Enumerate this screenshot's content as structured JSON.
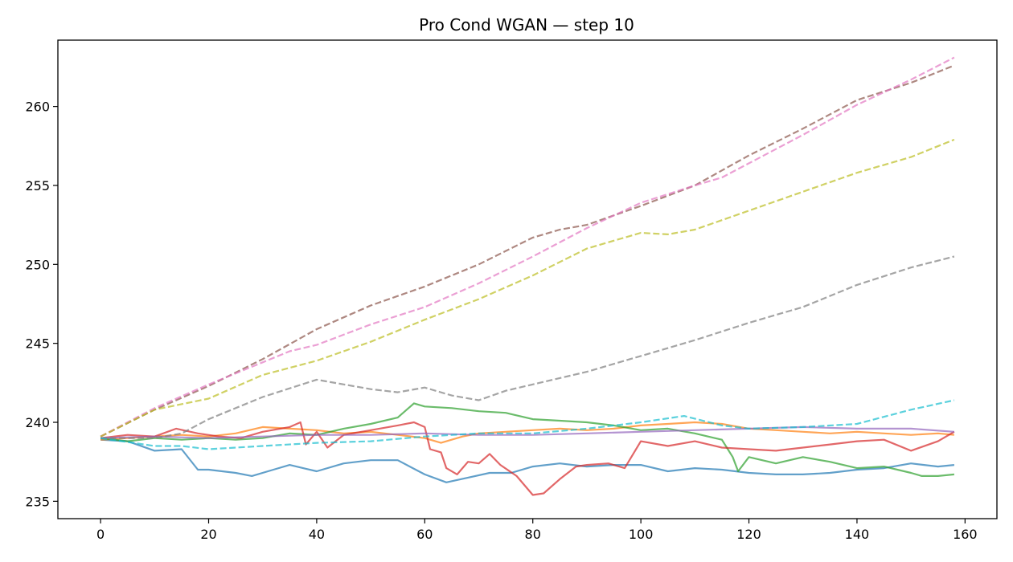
{
  "chart_data": {
    "type": "line",
    "title": "Pro Cond WGAN — step 10",
    "xlabel": "",
    "ylabel": "",
    "xlim": [
      -7.9,
      165.9
    ],
    "ylim": [
      233.9,
      264.2
    ],
    "xticks": [
      0,
      20,
      40,
      60,
      80,
      100,
      120,
      140,
      160
    ],
    "yticks": [
      235,
      240,
      245,
      250,
      255,
      260
    ],
    "grid": false,
    "legend": "none",
    "series": [
      {
        "color": "#1f77b4",
        "dash": "solid",
        "points": [
          [
            0,
            238.9
          ],
          [
            5,
            238.8
          ],
          [
            10,
            238.2
          ],
          [
            15,
            238.3
          ],
          [
            18,
            237.0
          ],
          [
            20,
            237.0
          ],
          [
            25,
            236.8
          ],
          [
            28,
            236.6
          ],
          [
            32,
            237.0
          ],
          [
            35,
            237.3
          ],
          [
            40,
            236.9
          ],
          [
            45,
            237.4
          ],
          [
            50,
            237.6
          ],
          [
            55,
            237.6
          ],
          [
            60,
            236.7
          ],
          [
            64,
            236.2
          ],
          [
            68,
            236.5
          ],
          [
            72,
            236.8
          ],
          [
            76,
            236.8
          ],
          [
            80,
            237.2
          ],
          [
            85,
            237.4
          ],
          [
            90,
            237.2
          ],
          [
            95,
            237.3
          ],
          [
            100,
            237.3
          ],
          [
            105,
            236.9
          ],
          [
            110,
            237.1
          ],
          [
            115,
            237.0
          ],
          [
            120,
            236.8
          ],
          [
            125,
            236.7
          ],
          [
            130,
            236.7
          ],
          [
            135,
            236.8
          ],
          [
            140,
            237.0
          ],
          [
            145,
            237.1
          ],
          [
            150,
            237.4
          ],
          [
            155,
            237.2
          ],
          [
            158,
            237.3
          ]
        ]
      },
      {
        "color": "#ff7f0e",
        "dash": "solid",
        "points": [
          [
            0,
            238.9
          ],
          [
            5,
            239.0
          ],
          [
            10,
            239.1
          ],
          [
            15,
            239.2
          ],
          [
            20,
            239.1
          ],
          [
            25,
            239.3
          ],
          [
            30,
            239.7
          ],
          [
            35,
            239.6
          ],
          [
            40,
            239.5
          ],
          [
            45,
            239.3
          ],
          [
            50,
            239.4
          ],
          [
            55,
            239.2
          ],
          [
            60,
            239.0
          ],
          [
            63,
            238.7
          ],
          [
            67,
            239.1
          ],
          [
            70,
            239.3
          ],
          [
            75,
            239.4
          ],
          [
            80,
            239.5
          ],
          [
            85,
            239.6
          ],
          [
            90,
            239.5
          ],
          [
            95,
            239.6
          ],
          [
            100,
            239.8
          ],
          [
            105,
            239.9
          ],
          [
            110,
            240.0
          ],
          [
            115,
            239.9
          ],
          [
            120,
            239.6
          ],
          [
            125,
            239.5
          ],
          [
            130,
            239.4
          ],
          [
            135,
            239.3
          ],
          [
            140,
            239.4
          ],
          [
            145,
            239.3
          ],
          [
            150,
            239.2
          ],
          [
            155,
            239.3
          ],
          [
            158,
            239.2
          ]
        ]
      },
      {
        "color": "#2ca02c",
        "dash": "solid",
        "points": [
          [
            0,
            239.0
          ],
          [
            5,
            238.8
          ],
          [
            10,
            239.0
          ],
          [
            15,
            238.9
          ],
          [
            20,
            239.0
          ],
          [
            25,
            238.9
          ],
          [
            30,
            239.0
          ],
          [
            35,
            239.3
          ],
          [
            40,
            239.2
          ],
          [
            45,
            239.6
          ],
          [
            50,
            239.9
          ],
          [
            55,
            240.3
          ],
          [
            58,
            241.2
          ],
          [
            60,
            241.0
          ],
          [
            65,
            240.9
          ],
          [
            70,
            240.7
          ],
          [
            75,
            240.6
          ],
          [
            80,
            240.2
          ],
          [
            85,
            240.1
          ],
          [
            90,
            240.0
          ],
          [
            95,
            239.8
          ],
          [
            100,
            239.5
          ],
          [
            105,
            239.6
          ],
          [
            110,
            239.3
          ],
          [
            115,
            238.9
          ],
          [
            117,
            237.8
          ],
          [
            118,
            236.9
          ],
          [
            120,
            237.8
          ],
          [
            125,
            237.4
          ],
          [
            130,
            237.8
          ],
          [
            135,
            237.5
          ],
          [
            140,
            237.1
          ],
          [
            145,
            237.2
          ],
          [
            150,
            236.8
          ],
          [
            152,
            236.6
          ],
          [
            155,
            236.6
          ],
          [
            158,
            236.7
          ]
        ]
      },
      {
        "color": "#d62728",
        "dash": "solid",
        "points": [
          [
            0,
            239.0
          ],
          [
            5,
            239.2
          ],
          [
            10,
            239.1
          ],
          [
            14,
            239.6
          ],
          [
            18,
            239.3
          ],
          [
            22,
            239.1
          ],
          [
            26,
            239.0
          ],
          [
            30,
            239.4
          ],
          [
            35,
            239.7
          ],
          [
            37,
            240.0
          ],
          [
            38,
            238.6
          ],
          [
            40,
            239.4
          ],
          [
            42,
            238.4
          ],
          [
            45,
            239.2
          ],
          [
            50,
            239.5
          ],
          [
            55,
            239.8
          ],
          [
            58,
            240.0
          ],
          [
            60,
            239.7
          ],
          [
            61,
            238.3
          ],
          [
            63,
            238.1
          ],
          [
            64,
            237.1
          ],
          [
            66,
            236.7
          ],
          [
            68,
            237.5
          ],
          [
            70,
            237.4
          ],
          [
            72,
            238.0
          ],
          [
            74,
            237.3
          ],
          [
            77,
            236.6
          ],
          [
            80,
            235.4
          ],
          [
            82,
            235.5
          ],
          [
            85,
            236.4
          ],
          [
            88,
            237.2
          ],
          [
            90,
            237.3
          ],
          [
            94,
            237.4
          ],
          [
            97,
            237.1
          ],
          [
            100,
            238.8
          ],
          [
            105,
            238.5
          ],
          [
            110,
            238.8
          ],
          [
            115,
            238.4
          ],
          [
            120,
            238.3
          ],
          [
            125,
            238.2
          ],
          [
            130,
            238.4
          ],
          [
            135,
            238.6
          ],
          [
            140,
            238.8
          ],
          [
            145,
            238.9
          ],
          [
            150,
            238.2
          ],
          [
            155,
            238.8
          ],
          [
            158,
            239.4
          ]
        ]
      },
      {
        "color": "#9467bd",
        "dash": "solid",
        "points": [
          [
            0,
            239.0
          ],
          [
            10,
            239.1
          ],
          [
            20,
            239.0
          ],
          [
            30,
            239.1
          ],
          [
            40,
            239.2
          ],
          [
            50,
            239.2
          ],
          [
            60,
            239.3
          ],
          [
            70,
            239.2
          ],
          [
            80,
            239.2
          ],
          [
            90,
            239.3
          ],
          [
            100,
            239.4
          ],
          [
            110,
            239.5
          ],
          [
            120,
            239.6
          ],
          [
            130,
            239.7
          ],
          [
            140,
            239.6
          ],
          [
            150,
            239.6
          ],
          [
            158,
            239.4
          ]
        ]
      },
      {
        "color": "#8c564b",
        "dash": "dashed",
        "points": [
          [
            0,
            239.1
          ],
          [
            10,
            240.8
          ],
          [
            20,
            242.3
          ],
          [
            30,
            244.0
          ],
          [
            40,
            245.9
          ],
          [
            50,
            247.4
          ],
          [
            60,
            248.6
          ],
          [
            70,
            250.0
          ],
          [
            80,
            251.7
          ],
          [
            85,
            252.2
          ],
          [
            90,
            252.5
          ],
          [
            100,
            253.7
          ],
          [
            110,
            255.0
          ],
          [
            120,
            256.9
          ],
          [
            130,
            258.6
          ],
          [
            140,
            260.4
          ],
          [
            150,
            261.5
          ],
          [
            158,
            262.6
          ]
        ]
      },
      {
        "color": "#e377c2",
        "dash": "dashed",
        "points": [
          [
            0,
            239.1
          ],
          [
            10,
            240.9
          ],
          [
            20,
            242.4
          ],
          [
            30,
            243.8
          ],
          [
            35,
            244.5
          ],
          [
            40,
            244.9
          ],
          [
            50,
            246.2
          ],
          [
            60,
            247.3
          ],
          [
            70,
            248.8
          ],
          [
            80,
            250.5
          ],
          [
            90,
            252.3
          ],
          [
            100,
            253.9
          ],
          [
            110,
            255.0
          ],
          [
            115,
            255.5
          ],
          [
            120,
            256.4
          ],
          [
            130,
            258.2
          ],
          [
            140,
            260.1
          ],
          [
            150,
            261.7
          ],
          [
            158,
            263.1
          ]
        ]
      },
      {
        "color": "#7f7f7f",
        "dash": "dashed",
        "points": [
          [
            0,
            239.0
          ],
          [
            10,
            239.0
          ],
          [
            15,
            239.3
          ],
          [
            20,
            240.2
          ],
          [
            30,
            241.6
          ],
          [
            40,
            242.7
          ],
          [
            45,
            242.4
          ],
          [
            50,
            242.1
          ],
          [
            55,
            241.9
          ],
          [
            60,
            242.2
          ],
          [
            65,
            241.7
          ],
          [
            70,
            241.4
          ],
          [
            75,
            242.0
          ],
          [
            80,
            242.4
          ],
          [
            90,
            243.2
          ],
          [
            100,
            244.2
          ],
          [
            110,
            245.2
          ],
          [
            120,
            246.3
          ],
          [
            130,
            247.3
          ],
          [
            140,
            248.7
          ],
          [
            150,
            249.8
          ],
          [
            158,
            250.5
          ]
        ]
      },
      {
        "color": "#bcbd22",
        "dash": "dashed",
        "points": [
          [
            0,
            239.1
          ],
          [
            10,
            240.8
          ],
          [
            20,
            241.5
          ],
          [
            30,
            243.0
          ],
          [
            40,
            243.9
          ],
          [
            50,
            245.1
          ],
          [
            60,
            246.5
          ],
          [
            70,
            247.8
          ],
          [
            80,
            249.3
          ],
          [
            90,
            251.0
          ],
          [
            100,
            252.0
          ],
          [
            105,
            251.9
          ],
          [
            110,
            252.2
          ],
          [
            120,
            253.4
          ],
          [
            130,
            254.6
          ],
          [
            140,
            255.8
          ],
          [
            150,
            256.8
          ],
          [
            158,
            257.9
          ]
        ]
      },
      {
        "color": "#17becf",
        "dash": "dashed",
        "points": [
          [
            0,
            239.0
          ],
          [
            10,
            238.5
          ],
          [
            15,
            238.5
          ],
          [
            20,
            238.3
          ],
          [
            30,
            238.5
          ],
          [
            40,
            238.7
          ],
          [
            50,
            238.8
          ],
          [
            60,
            239.1
          ],
          [
            70,
            239.3
          ],
          [
            80,
            239.3
          ],
          [
            90,
            239.6
          ],
          [
            100,
            240.0
          ],
          [
            108,
            240.4
          ],
          [
            115,
            239.8
          ],
          [
            120,
            239.6
          ],
          [
            130,
            239.7
          ],
          [
            140,
            239.9
          ],
          [
            150,
            240.8
          ],
          [
            158,
            241.4
          ]
        ]
      }
    ]
  }
}
